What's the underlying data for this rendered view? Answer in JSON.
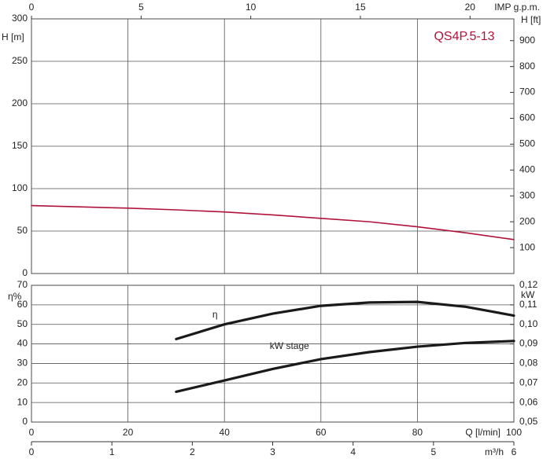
{
  "chart_data": [
    {
      "type": "line",
      "title": "QS4P.5-13",
      "y_label": "H [m]",
      "y2_label": "H [ft]",
      "x2_label": "IMP g.p.m.",
      "x": [
        0,
        10,
        20,
        30,
        40,
        50,
        60,
        70,
        80,
        90,
        100
      ],
      "series": [
        {
          "color": "#b0123a",
          "values": [
            80,
            78.5,
            77,
            75,
            72.5,
            69,
            65,
            61,
            55,
            48,
            40
          ]
        }
      ],
      "xlim": [
        0,
        100
      ],
      "xticks": [
        0,
        20,
        40,
        60,
        80,
        100
      ],
      "x2lim": [
        0,
        22
      ],
      "x2ticks": [
        0,
        5,
        10,
        15,
        20
      ],
      "ylim": [
        0,
        300
      ],
      "yticks": [
        0,
        50,
        100,
        150,
        200,
        250,
        300
      ],
      "y2lim": [
        0,
        984.25
      ],
      "y2ticks": [
        100,
        200,
        300,
        400,
        500,
        600,
        700,
        800,
        900
      ],
      "grid": true
    },
    {
      "type": "line",
      "x_label": "Q [l/min]",
      "x2_label": "m³/h",
      "y_label": "η%",
      "y2_label": "kW",
      "x": [
        30,
        40,
        50,
        60,
        70,
        80,
        90,
        100
      ],
      "series": [
        {
          "name": "η",
          "color": "#1a1a1a",
          "values": [
            42.5,
            50,
            55.5,
            59.5,
            61.2,
            61.5,
            59,
            54.5
          ]
        },
        {
          "name": "kW stage",
          "color": "#1a1a1a",
          "axis": "y2",
          "values": [
            0.0655,
            0.0713,
            0.0772,
            0.0822,
            0.0858,
            0.0886,
            0.0905,
            0.0915
          ]
        }
      ],
      "xlim": [
        0,
        100
      ],
      "xticks": [
        0,
        20,
        40,
        60,
        80,
        100
      ],
      "x2lim": [
        0,
        6
      ],
      "x2ticks": [
        0,
        1,
        2,
        3,
        4,
        5,
        6
      ],
      "ylim": [
        0,
        70
      ],
      "yticks": [
        0,
        10,
        20,
        30,
        40,
        50,
        60,
        70
      ],
      "y2lim": [
        0.05,
        0.12
      ],
      "y2ticks": [
        {
          "value": 0.05,
          "label": "0,05"
        },
        {
          "value": 0.06,
          "label": "0,06"
        },
        {
          "value": 0.07,
          "label": "0,07"
        },
        {
          "value": 0.08,
          "label": "0,08"
        },
        {
          "value": 0.09,
          "label": "0,09"
        },
        {
          "value": 0.1,
          "label": "0,10"
        },
        {
          "value": 0.11,
          "label": "0,11"
        },
        {
          "value": 0.12,
          "label": "0,12"
        }
      ],
      "grid": true
    }
  ]
}
